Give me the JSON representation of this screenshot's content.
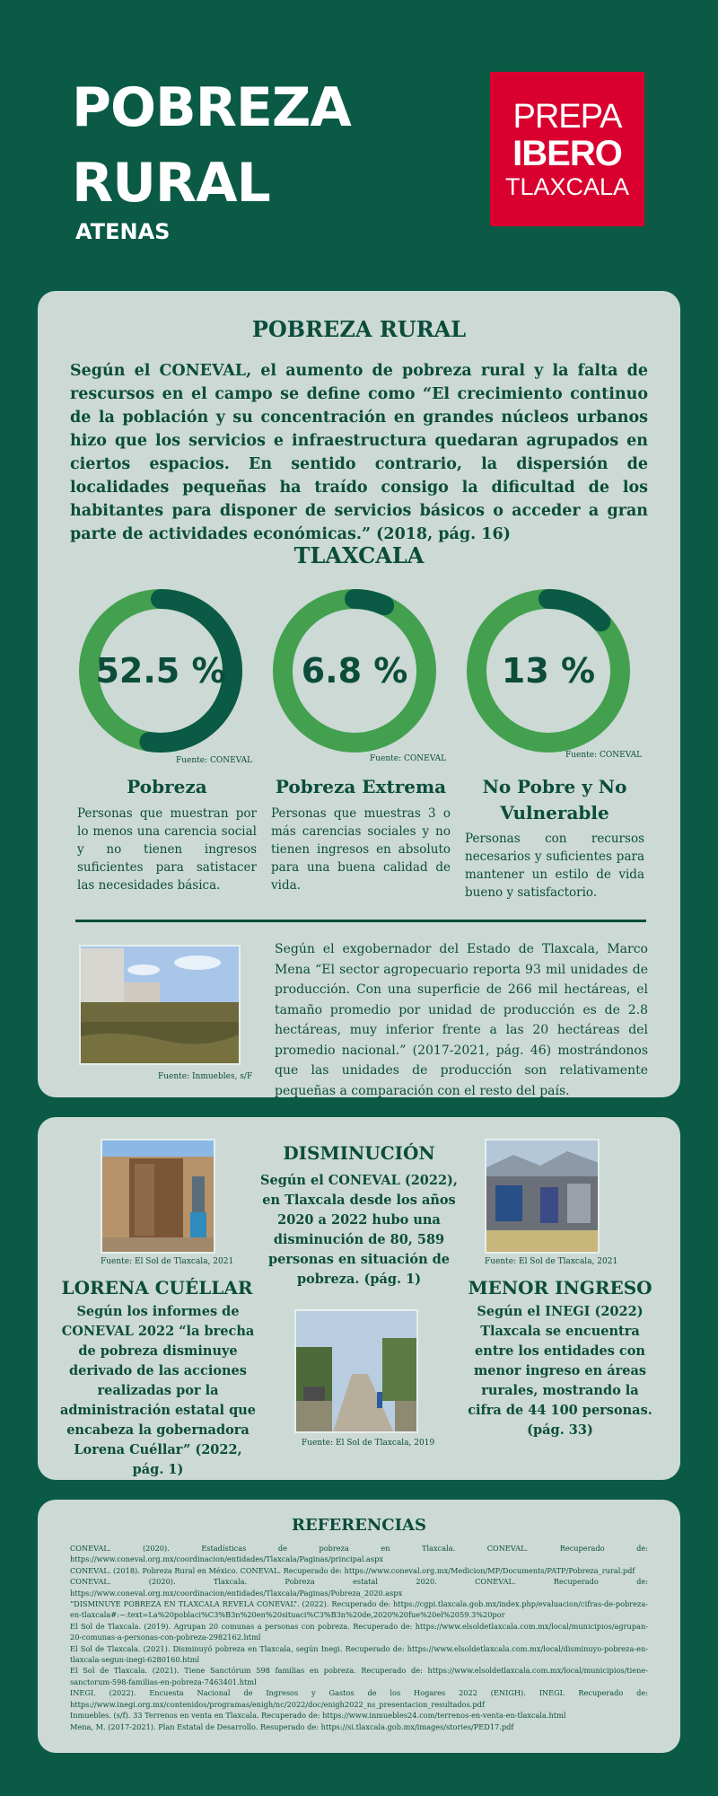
{
  "header": {
    "title_line1": "POBREZA",
    "title_line2": "RURAL",
    "subtitle": "ATENAS",
    "logo": {
      "line1": "PREPA",
      "line2": "IBERO",
      "line3": "TLAXCALA",
      "color": "#d9002f"
    }
  },
  "section1": {
    "title": "POBREZA RURAL",
    "intro": "Según el CONEVAL, el aumento de pobreza rural y la falta de rescursos en el campo se define como “El crecimiento continuo de la población y su concentración en grandes núcleos urbanos hizo que los servicios e infraestructura quedaran agrupados en ciertos espacios. En sentido contrario, la dispersión de localidades pequeñas ha traído consigo la dificultad de los habitantes para disponer de servicios básicos o acceder a gran parte de actividades económicas.” (2018, pág. 16)",
    "subtitle": "TLAXCALA",
    "stats": [
      {
        "value_label": "52.5 %",
        "percent": 52.5,
        "source": "Fuente: CONEVAL",
        "title": "Pobreza",
        "desc": "Personas que muestran por lo menos una carencia social y no tienen ingresos suficientes para satistacer las necesidades básica."
      },
      {
        "value_label": "6.8 %",
        "percent": 6.8,
        "source": "Fuente: CONEVAL",
        "title": "Pobreza Extrema",
        "desc": "Personas que muestras 3 o más carencias sociales y no tienen ingresos en absoluto para una buena calidad de vida."
      },
      {
        "value_label": "13 %",
        "percent": 13,
        "source": "Fuente: CONEVAL",
        "title": "No Pobre y No Vulnerable",
        "desc": "Personas con recursos necesarios y suficientes para mantener un estilo de vida bueno y satisfactorio."
      }
    ],
    "colors": {
      "ring_light": "#43a04f",
      "ring_dark": "#0a5a45"
    },
    "photo_source": "Fuente: Inmuebles, s/F",
    "exgob_text": "Según el exgobernador del Estado de Tlaxcala, Marco Mena “El sector agropecuario reporta 93 mil unidades de producción. Con una superficie de 266 mil hectáreas, el tamaño promedio por unidad de producción es de 2.8 hectáreas, muy inferior frente a las 20 hectáreas del promedio nacional.” (2017-2021, pág. 46) mostrándonos que las unidades de producción son relativamente pequeñas a comparación con el resto del país."
  },
  "section2": {
    "disminucion": {
      "title": "DISMINUCIÓN",
      "text": "Según el CONEVAL (2022), en Tlaxcala desde los años 2020 a 2022 hubo una disminución de 80, 589 personas en situación de pobreza. (pág. 1)"
    },
    "lorena": {
      "title": "LORENA CUÉLLAR",
      "text": "Según los informes de CONEVAL 2022 “la brecha de pobreza disminuye derivado de las acciones realizadas por la administración estatal que encabeza la gobernadora Lorena Cuéllar” (2022, pág. 1)"
    },
    "menor": {
      "title": "MENOR INGRESO",
      "text": "Según el INEGI (2022) Tlaxcala se encuentra entre los entidades con menor ingreso en áreas rurales, mostrando la cifra de 44 100 personas. (pág. 33)"
    },
    "photo_sources": [
      "Fuente: El Sol de Tlaxcala, 2021",
      "Fuente: El Sol de Tlaxcala, 2021",
      "Fuente: El Sol de Tlaxcala, 2019"
    ]
  },
  "references": {
    "title": "REFERENCIAS",
    "items": [
      "CONEVAL. (2020). Estadísticas de pobreza en Tlaxcala. CONEVAL. Recuperado de: https://www.coneval.org.mx/coordinacion/entidades/Tlaxcala/Paginas/principal.aspx",
      "CONEVAL. (2018). Pobreza Rural en México. CONEVAL. Recuperado de: https://www.coneval.org.mx/Medicion/MP/Documents/PATP/Pobreza_rural.pdf",
      "CONEVAL. (2020). Tlaxcala. Pobreza estatal 2020. CONEVAL. Recuperado de: https://www.coneval.org.mx/coordinacion/entidades/Tlaxcala/Paginas/Pobreza_2020.aspx",
      "“DISMINUYE POBREZA EN TLAXCALA REVELA CONEVAL”. (2022). Recuperado de: https://cgpi.tlaxcala.gob.mx/index.php/evaluacion/cifras-de-pobreza-en-tlaxcala#:~:text=La%20poblaci%C3%B3n%20en%20situaci%C3%B3n%20de,2020%20fue%20el%2059.3%20por",
      "El Sol de Tlaxcala. (2019). Agrupan 20 comunas a personas con pobreza. Recuperado de: https://www.elsoldetlaxcala.com.mx/local/municipios/agrupan-20-comunas-a-personas-con-pobreza-2982162.html",
      "El Sol de Tlaxcala. (2021). Disminuyó pobreza en Tlaxcala, según Inegi. Recuperado de: https://www.elsoldetlaxcala.com.mx/local/disminuyo-pobreza-en-tlaxcala-segun-inegi-6280160.html",
      "El Sol de Tlaxcala. (2021). Tiene Sanctórum 598 familias en pobreza. Recuperado de: https://www.elsoldetlaxcala.com.mx/local/municipios/tiene-sanctorum-598-familias-en-pobreza-7463401.html",
      "INEGI. (2022). Encuesta Nacional de Ingresos y Gastos de los Hogares 2022 (ENIGH). INEGI. Recuperado de: https://www.inegi.org.mx/contenidos/programas/enigh/nc/2022/doc/enigh2022_ns_presentacion_resultados.pdf",
      "Inmuebles. (s/f). 33 Terrenos en venta en Tlaxcala. Recuperado de: https://www.inmuebles24.com/terrenos-en-venta-en-tlaxcala.html",
      "Mena, M. (2017-2021). Plan Estatal de Desarrollo. Resuperado de: https://si.tlaxcala.gob.mx/images/stories/PED17.pdf"
    ]
  }
}
